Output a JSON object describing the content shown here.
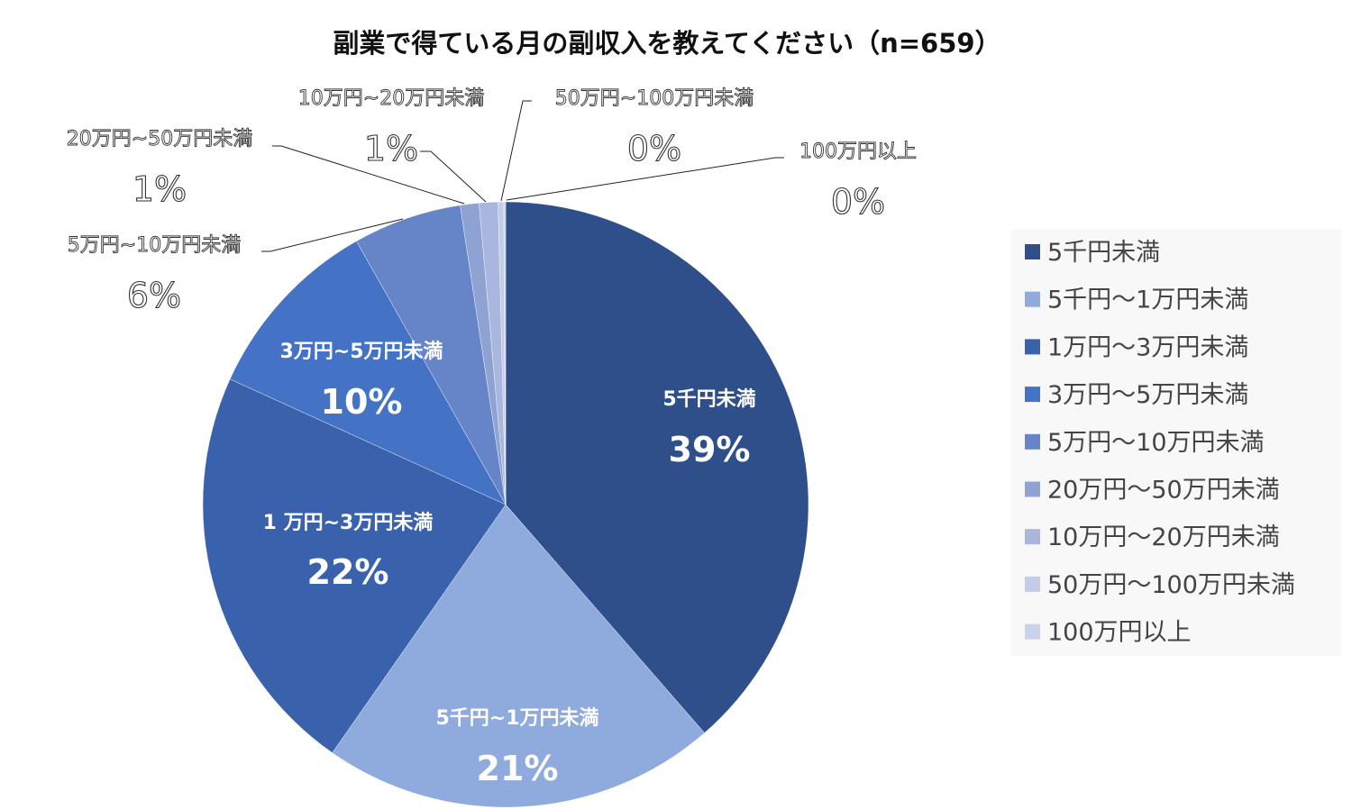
{
  "chart_data": {
    "type": "pie",
    "title": "副業で得ている月の副収入を教えてください（n=659）",
    "categories": [
      "5千円未満",
      "5千円～1万円未満",
      "1万円～3万円未満",
      "3万円～5万円未満",
      "5万円～10万円未満",
      "20万円～50万円未満",
      "10万円～20万円未満",
      "50万円～100万円未満",
      "100万円以上"
    ],
    "values": [
      38.6,
      21.1,
      22.1,
      10.0,
      5.8,
      1.0,
      1.0,
      0.3,
      0.1
    ],
    "data_labels": [
      {
        "name": "5千円未満",
        "pct": "39%"
      },
      {
        "name": "5千円~1万円未満",
        "pct": "21%"
      },
      {
        "name": "1 万円~3万円未満",
        "pct": "22%"
      },
      {
        "name": "3万円~5万円未満",
        "pct": "10%"
      },
      {
        "name": "5万円~10万円未満",
        "pct": "6%"
      },
      {
        "name": "20万円~50万円未満",
        "pct": "1%"
      },
      {
        "name": "10万円~20万円未満",
        "pct": "1%"
      },
      {
        "name": "50万円~100万円未満",
        "pct": "0%"
      },
      {
        "name": "100万円以上",
        "pct": "0%"
      }
    ],
    "colors": [
      "#2F4F8A",
      "#8FAADC",
      "#3A62AC",
      "#4472C4",
      "#6585C8",
      "#8FA3D3",
      "#A9B7DE",
      "#C3CCE9",
      "#CAD3EC"
    ],
    "start_angle": "top",
    "direction": "clockwise",
    "legend_position": "right"
  }
}
